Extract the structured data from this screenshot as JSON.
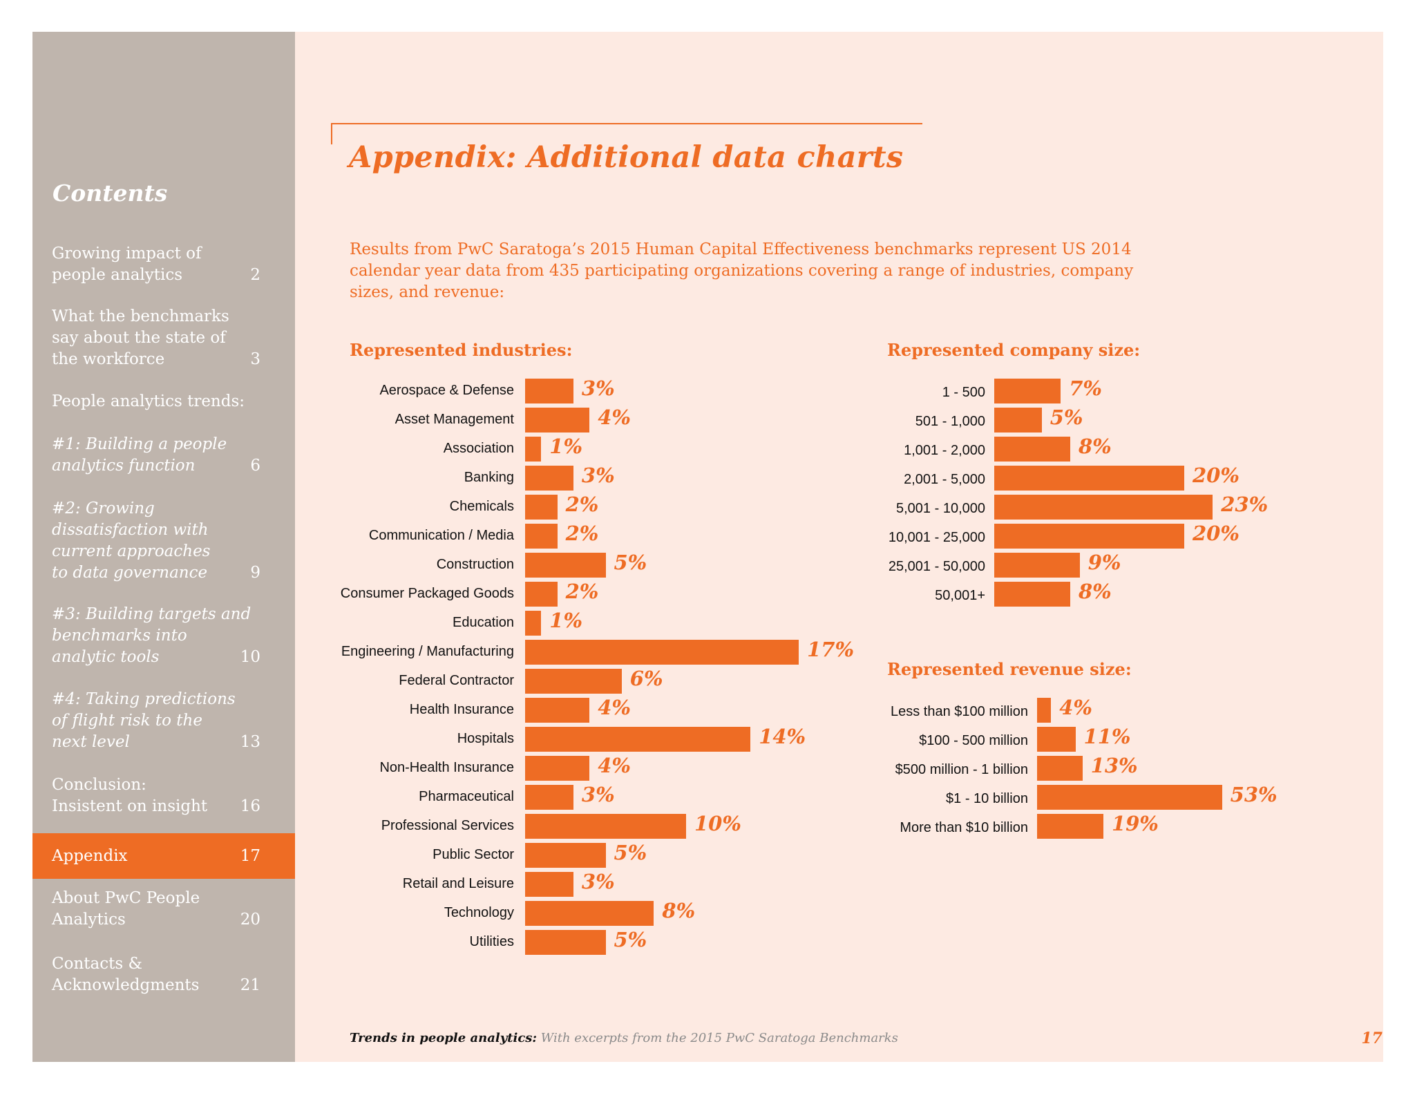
{
  "sidebar": {
    "title": "Contents",
    "items": [
      {
        "label": "Growing impact of\npeople analytics",
        "page": "2",
        "italic": false
      },
      {
        "label": "What the benchmarks\nsay about the state of\nthe workforce",
        "page": "3",
        "italic": false
      },
      {
        "label": "People analytics trends:",
        "page": "",
        "italic": false
      },
      {
        "label": "#1: Building a people\nanalytics function",
        "page": "6",
        "italic": true
      },
      {
        "label": "#2: Growing\ndissatisfaction with\ncurrent approaches\nto data governance",
        "page": "9",
        "italic": true
      },
      {
        "label": "#3: Building targets and\nbenchmarks into\nanalytic tools",
        "page": "10",
        "italic": true
      },
      {
        "label": "#4: Taking predictions\nof flight risk to the\nnext level",
        "page": "13",
        "italic": true
      },
      {
        "label": "Conclusion:\nInsistent on insight",
        "page": "16",
        "italic": false
      },
      {
        "label": "Appendix",
        "page": "17",
        "italic": false,
        "active": true
      },
      {
        "label": "About PwC People\nAnalytics",
        "page": "20",
        "italic": false
      },
      {
        "label": "Contacts &\nAcknowledgments",
        "page": "21",
        "italic": false
      }
    ]
  },
  "page_title": "Appendix: Additional data charts",
  "intro": "Results from PwC Saratoga’s 2015 Human Capital Effectiveness benchmarks represent US 2014 calendar year data from 435 participating organizations covering a range of industries, company sizes, and revenue:",
  "footer": {
    "title": "Trends in people analytics:",
    "subtitle": " With excerpts from the 2015 PwC Saratoga Benchmarks",
    "page_number": "17"
  },
  "colors": {
    "accent": "#ee6c24",
    "sidebar": "#bfb5ad",
    "page_bg": "#fdeae2"
  },
  "chart_data": [
    {
      "type": "bar",
      "orientation": "horizontal",
      "title": "Represented industries:",
      "categories": [
        "Aerospace & Defense",
        "Asset Management",
        "Association",
        "Banking",
        "Chemicals",
        "Communication / Media",
        "Construction",
        "Consumer Packaged Goods",
        "Education",
        "Engineering / Manufacturing",
        "Federal Contractor",
        "Health Insurance",
        "Hospitals",
        "Non-Health Insurance",
        "Pharmaceutical",
        "Professional Services",
        "Public Sector",
        "Retail and Leisure",
        "Technology",
        "Utilities"
      ],
      "values": [
        3,
        4,
        1,
        3,
        2,
        2,
        5,
        2,
        1,
        17,
        6,
        4,
        14,
        4,
        3,
        10,
        5,
        3,
        8,
        5
      ],
      "labels": [
        "3%",
        "4%",
        "1%",
        "3%",
        "2%",
        "2%",
        "5%",
        "2%",
        "1%",
        "17%",
        "6%",
        "4%",
        "14%",
        "4%",
        "3%",
        "10%",
        "5%",
        "3%",
        "8%",
        "5%"
      ]
    },
    {
      "type": "bar",
      "orientation": "horizontal",
      "title": "Represented company size:",
      "categories": [
        "1 - 500",
        "501 - 1,000",
        "1,001 - 2,000",
        "2,001 - 5,000",
        "5,001 - 10,000",
        "10,001 - 25,000",
        "25,001 - 50,000",
        "50,001+"
      ],
      "values": [
        7,
        5,
        8,
        20,
        23,
        20,
        9,
        8
      ],
      "labels": [
        "7%",
        "5%",
        "8%",
        "20%",
        "23%",
        "20%",
        "9%",
        "8%"
      ]
    },
    {
      "type": "bar",
      "orientation": "horizontal",
      "title": "Represented revenue size:",
      "categories": [
        "Less than $100 million",
        "$100 - 500 million",
        "$500 million - 1 billion",
        "$1 - 10 billion",
        "More than $10 billion"
      ],
      "values": [
        4,
        11,
        13,
        53,
        19
      ],
      "labels": [
        "4%",
        "11%",
        "13%",
        "53%",
        "19%"
      ]
    }
  ]
}
